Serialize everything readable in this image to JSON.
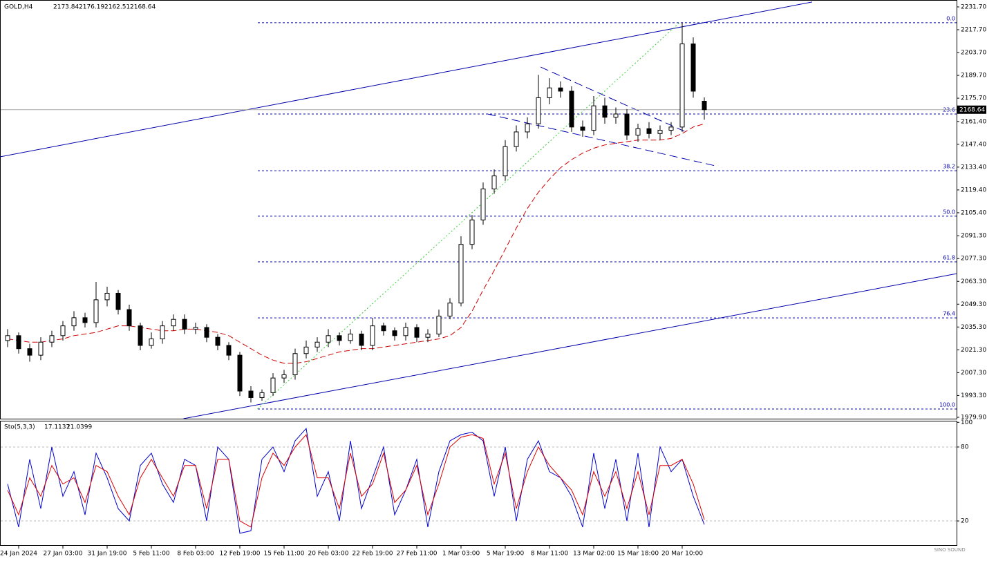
{
  "chart_data": {
    "type": "candlestick",
    "symbol": "GOLD,H4",
    "categories": [
      null,
      "24 Jan 2024",
      null,
      null,
      null,
      "27 Jan 03:00",
      null,
      null,
      null,
      "31 Jan 19:00",
      null,
      null,
      null,
      "5 Feb 11:00",
      null,
      null,
      null,
      "8 Feb 03:00",
      null,
      null,
      null,
      "12 Feb 19:00",
      null,
      null,
      null,
      "15 Feb 11:00",
      null,
      null,
      null,
      "20 Feb 03:00",
      null,
      null,
      null,
      "22 Feb 19:00",
      null,
      null,
      null,
      "27 Feb 11:00",
      null,
      null,
      null,
      "1 Mar 03:00",
      null,
      null,
      null,
      "5 Mar 19:00",
      null,
      null,
      null,
      "8 Mar 11:00",
      null,
      null,
      null,
      "13 Mar 02:00",
      null,
      null,
      null,
      "15 Mar 18:00",
      null,
      null,
      null,
      "20 Mar 10:00",
      null,
      null
    ],
    "open": [
      2027,
      2030,
      2022,
      2018,
      2026,
      2030,
      2036,
      2041,
      2038,
      2052,
      2056,
      2046,
      2036,
      2024,
      2028,
      2036,
      2040,
      2034,
      2035,
      2029,
      2024,
      2018,
      1996,
      1992,
      1995,
      2004,
      2006,
      2019,
      2023,
      2026,
      2030,
      2027,
      2031,
      2024,
      2036,
      2033,
      2030,
      2035,
      2029,
      2031,
      2042,
      2050,
      2086,
      2101,
      2120,
      2128,
      2146,
      2155,
      2160,
      2176,
      2182,
      2180,
      2158,
      2156,
      2171,
      2164,
      2166,
      2153,
      2157,
      2154,
      2156,
      2158,
      2209,
      2173.84
    ],
    "high": [
      2034,
      2032,
      2025,
      2029,
      2033,
      2039,
      2045,
      2044,
      2063,
      2060,
      2058,
      2049,
      2038,
      2032,
      2039,
      2043,
      2043,
      2038,
      2037,
      2031,
      2026,
      2020,
      1999,
      1997,
      2007,
      2009,
      2022,
      2027,
      2029,
      2034,
      2032,
      2034,
      2033,
      2041,
      2038,
      2035,
      2038,
      2037,
      2034,
      2046,
      2053,
      2091,
      2104,
      2124,
      2132,
      2150,
      2159,
      2164,
      2190,
      2188,
      2186,
      2183,
      2162,
      2177,
      2176,
      2170,
      2169,
      2160,
      2161,
      2159,
      2161,
      2222,
      2213,
      2176.19
    ],
    "low": [
      2023,
      2019,
      2014,
      2015,
      2023,
      2027,
      2033,
      2035,
      2035,
      2048,
      2043,
      2033,
      2021,
      2022,
      2025,
      2033,
      2031,
      2031,
      2026,
      2021,
      2015,
      1993,
      1989,
      1990,
      1993,
      2001,
      2003,
      2016,
      2020,
      2023,
      2024,
      2025,
      2021,
      2021,
      2030,
      2027,
      2027,
      2026,
      2026,
      2029,
      2040,
      2048,
      2083,
      2098,
      2117,
      2125,
      2143,
      2151,
      2157,
      2172,
      2176,
      2155,
      2152,
      2153,
      2160,
      2160,
      2150,
      2149,
      2151,
      2150,
      2153,
      2155,
      2176,
      2162.51
    ],
    "close": [
      2030,
      2022,
      2018,
      2026,
      2030,
      2036,
      2041,
      2038,
      2052,
      2056,
      2046,
      2036,
      2024,
      2028,
      2036,
      2040,
      2034,
      2035,
      2029,
      2024,
      2018,
      1996,
      1992,
      1995,
      2004,
      2006,
      2019,
      2023,
      2026,
      2030,
      2027,
      2031,
      2024,
      2036,
      2033,
      2030,
      2035,
      2029,
      2031,
      2042,
      2050,
      2086,
      2101,
      2120,
      2128,
      2146,
      2155,
      2160,
      2176,
      2182,
      2180,
      2158,
      2156,
      2171,
      2164,
      2166,
      2153,
      2157,
      2154,
      2156,
      2158,
      2209,
      2180,
      2168.64
    ],
    "ma": {
      "color": "#cc0000",
      "values": [
        2028,
        2027,
        2026,
        2026,
        2027,
        2028,
        2030,
        2031,
        2032,
        2034,
        2036,
        2036,
        2035,
        2034,
        2033,
        2033,
        2034,
        2034,
        2033,
        2032,
        2030,
        2026,
        2022,
        2018,
        2015,
        2013,
        2013,
        2014,
        2016,
        2018,
        2020,
        2021,
        2022,
        2022,
        2023,
        2024,
        2025,
        2026,
        2027,
        2028,
        2030,
        2035,
        2045,
        2058,
        2070,
        2083,
        2096,
        2108,
        2118,
        2126,
        2133,
        2138,
        2142,
        2145,
        2147,
        2148,
        2149,
        2150,
        2150,
        2150,
        2151,
        2154,
        2158,
        2160
      ]
    },
    "ylim": [
      1979.05,
      2235.94
    ],
    "yticks": [
      {
        "value": 2231.7,
        "label": "2231.70"
      },
      {
        "value": 2217.7,
        "label": "2217.70"
      },
      {
        "value": 2203.7,
        "label": "2203.70"
      },
      {
        "value": 2189.7,
        "label": "2189.70"
      },
      {
        "value": 2175.7,
        "label": "2175.70"
      },
      {
        "value": 2161.4,
        "label": "2161.40"
      },
      {
        "value": 2147.4,
        "label": "2147.40"
      },
      {
        "value": 2133.4,
        "label": "2133.40"
      },
      {
        "value": 2119.4,
        "label": "2119.40"
      },
      {
        "value": 2105.4,
        "label": "2105.40"
      },
      {
        "value": 2091.3,
        "label": "2091.30"
      },
      {
        "value": 2077.3,
        "label": "2077.30"
      },
      {
        "value": 2063.3,
        "label": "2063.30"
      },
      {
        "value": 2049.3,
        "label": "2049.30"
      },
      {
        "value": 2035.3,
        "label": "2035.30"
      },
      {
        "value": 2021.3,
        "label": "2021.30"
      },
      {
        "value": 2007.3,
        "label": "2007.30"
      },
      {
        "value": 1993.3,
        "label": "1993.30"
      },
      {
        "value": 1979.9,
        "label": "1979.90"
      }
    ],
    "fib_levels": [
      {
        "label": "0.0",
        "price": 2222
      },
      {
        "label": "23.6",
        "price": 2166
      },
      {
        "label": "38.2",
        "price": 2131.2
      },
      {
        "label": "50.0",
        "price": 2103.3
      },
      {
        "label": "61.8",
        "price": 2075.3
      },
      {
        "label": "76.4",
        "price": 2040.9
      },
      {
        "label": "100.0",
        "price": 1985
      }
    ],
    "trendlines": [
      {
        "color": "#0000aa",
        "dash": "none",
        "x": [
          -0.69,
          72.75
        ],
        "y": [
          2139.7,
          2234.7
        ]
      },
      {
        "color": "#0000aa",
        "dash": "none",
        "x": [
          15.9,
          85.8
        ],
        "y": [
          1979.05,
          2068
        ]
      },
      {
        "color": "#0000aa",
        "dash": "12 6",
        "x": [
          48.2,
          61.2
        ],
        "y": [
          2194.8,
          2155.4
        ]
      },
      {
        "color": "#0000aa",
        "dash": "12 6",
        "x": [
          43.4,
          64
        ],
        "y": [
          2166,
          2134.2
        ]
      },
      {
        "color": "#33cc33",
        "dash": "2 3",
        "x": [
          22.6,
          60.75
        ],
        "y": [
          1985,
          2222
        ]
      }
    ],
    "stochastic": {
      "name": "Sto(5,3,3)",
      "ylim": [
        0,
        100
      ],
      "yticks": [
        100,
        80,
        20
      ],
      "main": {
        "color": "#0000cc",
        "values": [
          50,
          15,
          70,
          30,
          80,
          40,
          60,
          25,
          75,
          55,
          30,
          20,
          65,
          75,
          50,
          35,
          70,
          65,
          20,
          80,
          70,
          10,
          12,
          70,
          80,
          60,
          85,
          95,
          40,
          60,
          20,
          85,
          30,
          55,
          80,
          25,
          45,
          70,
          15,
          60,
          85,
          90,
          92,
          85,
          40,
          80,
          20,
          70,
          85,
          60,
          55,
          40,
          15,
          75,
          30,
          70,
          20,
          75,
          15,
          80,
          60,
          70,
          40,
          17.1137
        ]
      },
      "signal": {
        "color": "#dd0000",
        "values": [
          45,
          25,
          55,
          40,
          65,
          50,
          55,
          35,
          65,
          60,
          40,
          25,
          55,
          70,
          55,
          40,
          65,
          65,
          30,
          70,
          70,
          20,
          15,
          55,
          75,
          65,
          80,
          90,
          55,
          55,
          30,
          75,
          40,
          50,
          75,
          35,
          45,
          65,
          25,
          50,
          80,
          88,
          90,
          87,
          50,
          75,
          30,
          60,
          80,
          65,
          55,
          45,
          25,
          60,
          40,
          60,
          30,
          60,
          25,
          65,
          65,
          70,
          50,
          21.0399
        ]
      }
    },
    "watermark": "SINO SOUND"
  }
}
